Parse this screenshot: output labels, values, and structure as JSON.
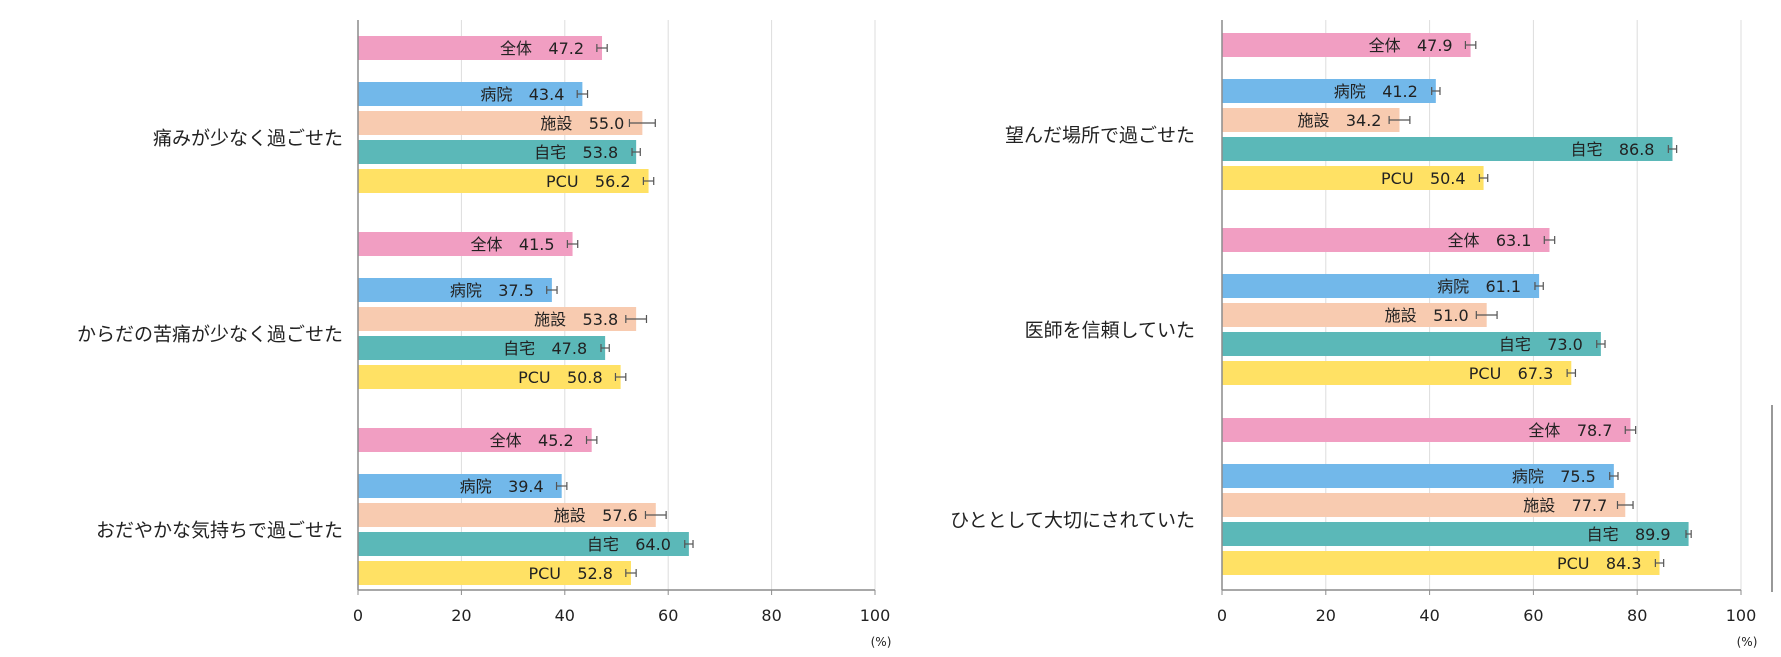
{
  "colors": {
    "全体": "#f19ec2",
    "病院": "#72b8ea",
    "施設": "#f8cbb0",
    "自宅": "#5bb8b8",
    "PCU": "#ffe164",
    "axis": "#8c8c8c",
    "grid": "#dddddd",
    "text": "#222222",
    "errorbar": "#555555"
  },
  "chart_data": [
    {
      "type": "bar",
      "orientation": "horizontal",
      "xlim": [
        0,
        100
      ],
      "xticks": [
        "0",
        "20",
        "40",
        "60",
        "80",
        "100"
      ],
      "x_unit": "(%)",
      "grid": true,
      "groups": [
        {
          "label": "痛みが少なく過ごせた",
          "bars": [
            {
              "name": "全体",
              "value": 47.2,
              "value_label": "47.2",
              "err": 1.0
            },
            {
              "name": "病院",
              "value": 43.4,
              "value_label": "43.4",
              "err": 1.0
            },
            {
              "name": "施設",
              "value": 55.0,
              "value_label": "55.0",
              "err": 2.5
            },
            {
              "name": "自宅",
              "value": 53.8,
              "value_label": "53.8",
              "err": 0.8
            },
            {
              "name": "PCU",
              "value": 56.2,
              "value_label": "56.2",
              "err": 1.0
            }
          ]
        },
        {
          "label": "からだの苦痛が少なく過ごせた",
          "bars": [
            {
              "name": "全体",
              "value": 41.5,
              "value_label": "41.5",
              "err": 1.0
            },
            {
              "name": "病院",
              "value": 37.5,
              "value_label": "37.5",
              "err": 1.0
            },
            {
              "name": "施設",
              "value": 53.8,
              "value_label": "53.8",
              "err": 2.0
            },
            {
              "name": "自宅",
              "value": 47.8,
              "value_label": "47.8",
              "err": 0.8
            },
            {
              "name": "PCU",
              "value": 50.8,
              "value_label": "50.8",
              "err": 1.0
            }
          ]
        },
        {
          "label": "おだやかな気持ちで過ごせた",
          "bars": [
            {
              "name": "全体",
              "value": 45.2,
              "value_label": "45.2",
              "err": 1.0
            },
            {
              "name": "病院",
              "value": 39.4,
              "value_label": "39.4",
              "err": 1.0
            },
            {
              "name": "施設",
              "value": 57.6,
              "value_label": "57.6",
              "err": 2.0
            },
            {
              "name": "自宅",
              "value": 64.0,
              "value_label": "64.0",
              "err": 0.8
            },
            {
              "name": "PCU",
              "value": 52.8,
              "value_label": "52.8",
              "err": 1.0
            }
          ]
        }
      ]
    },
    {
      "type": "bar",
      "orientation": "horizontal",
      "xlim": [
        0,
        100
      ],
      "xticks": [
        "0",
        "20",
        "40",
        "60",
        "80",
        "100"
      ],
      "x_unit": "(%)",
      "grid": true,
      "groups": [
        {
          "label": "望んだ場所で過ごせた",
          "bars": [
            {
              "name": "全体",
              "value": 47.9,
              "value_label": "47.9",
              "err": 1.0
            },
            {
              "name": "病院",
              "value": 41.2,
              "value_label": "41.2",
              "err": 0.8
            },
            {
              "name": "施設",
              "value": 34.2,
              "value_label": "34.2",
              "err": 2.0
            },
            {
              "name": "自宅",
              "value": 86.8,
              "value_label": "86.8",
              "err": 0.8
            },
            {
              "name": "PCU",
              "value": 50.4,
              "value_label": "50.4",
              "err": 0.8
            }
          ]
        },
        {
          "label": "医師を信頼していた",
          "bars": [
            {
              "name": "全体",
              "value": 63.1,
              "value_label": "63.1",
              "err": 1.0
            },
            {
              "name": "病院",
              "value": 61.1,
              "value_label": "61.1",
              "err": 0.8
            },
            {
              "name": "施設",
              "value": 51.0,
              "value_label": "51.0",
              "err": 2.0
            },
            {
              "name": "自宅",
              "value": 73.0,
              "value_label": "73.0",
              "err": 0.8
            },
            {
              "name": "PCU",
              "value": 67.3,
              "value_label": "67.3",
              "err": 0.8
            }
          ]
        },
        {
          "label": "ひととして大切にされていた",
          "bars": [
            {
              "name": "全体",
              "value": 78.7,
              "value_label": "78.7",
              "err": 1.0
            },
            {
              "name": "病院",
              "value": 75.5,
              "value_label": "75.5",
              "err": 0.8
            },
            {
              "name": "施設",
              "value": 77.7,
              "value_label": "77.7",
              "err": 1.5
            },
            {
              "name": "自宅",
              "value": 89.9,
              "value_label": "89.9",
              "err": 0.5
            },
            {
              "name": "PCU",
              "value": 84.3,
              "value_label": "84.3",
              "err": 0.8
            }
          ]
        }
      ]
    }
  ]
}
